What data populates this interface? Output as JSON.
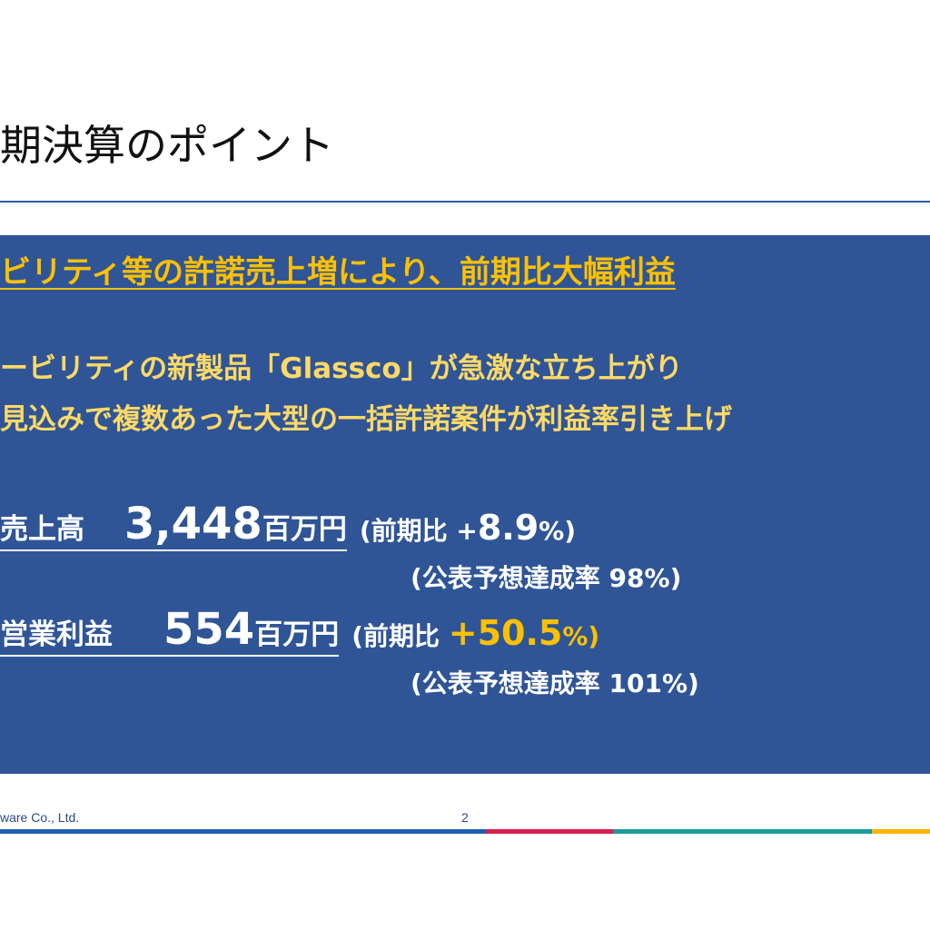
{
  "slide": {
    "title": "期決算のポイント",
    "headline": "ビリティ等の許諾売上増により、前期比大幅利益",
    "bullets": [
      "ービリティの新製品「Glassco」が急激な立ち上がり",
      "見込みで複数あった大型の一括許諾案件が利益率引き上げ"
    ]
  },
  "metrics": [
    {
      "label": "売上高",
      "value": "3,448",
      "unit": "百万円",
      "comparison_prefix": "(前期比 +",
      "comparison_value": "8.9",
      "comparison_suffix": "%)",
      "achievement": "(公表予想達成率 98%)"
    },
    {
      "label": "営業利益",
      "value": "554",
      "unit": "百万円",
      "comparison_prefix": "(前期比 ",
      "comparison_value": "+50.5",
      "comparison_suffix": "%)",
      "achievement": "(公表予想達成率 101%)"
    }
  ],
  "footer": {
    "company": "ware Co., Ltd.",
    "page_number": "2"
  },
  "colors": {
    "panel_background": "#2f5597",
    "accent_yellow": "#ffc000",
    "bullet_yellow": "#ffd966",
    "title_rule": "#2a5fa5",
    "footer_bar": [
      "#1f5fb0",
      "#d6204f",
      "#1c9a9a",
      "#ffb400"
    ]
  }
}
